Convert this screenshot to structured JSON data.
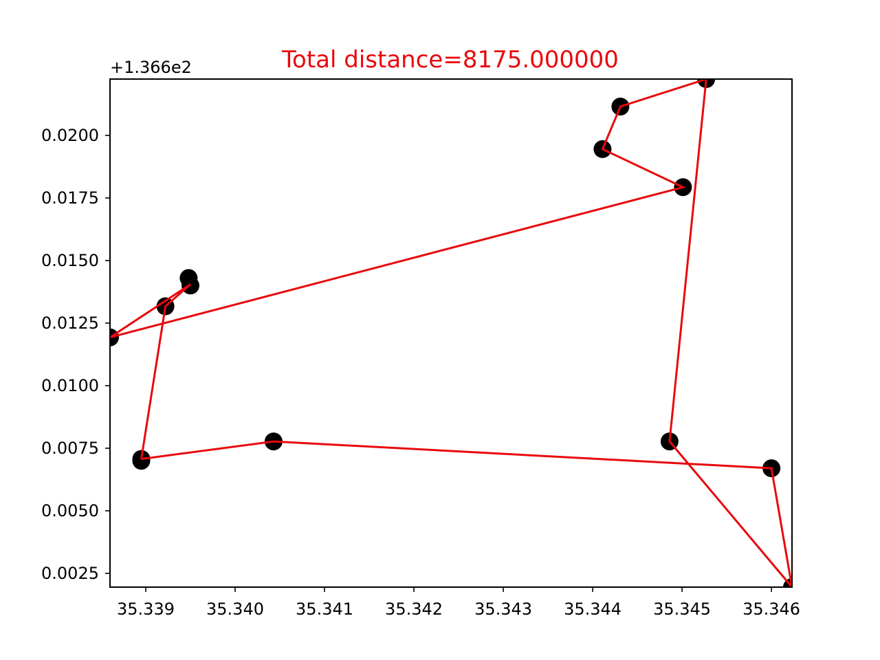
{
  "chart_data": {
    "type": "scatter",
    "title": "Total distance=8175.000000",
    "xlabel": "",
    "ylabel": "",
    "y_offset_label": "+1.366e2",
    "xlim": [
      35.3386,
      35.34623
    ],
    "ylim": [
      0.00195,
      0.02225
    ],
    "x_ticks": [
      35.339,
      35.34,
      35.341,
      35.342,
      35.343,
      35.344,
      35.345,
      35.346
    ],
    "x_tick_labels": [
      "35.339",
      "35.340",
      "35.341",
      "35.342",
      "35.343",
      "35.344",
      "35.345",
      "35.346"
    ],
    "y_ticks": [
      0.0025,
      0.005,
      0.0075,
      0.01,
      0.0125,
      0.015,
      0.0175,
      0.02
    ],
    "y_tick_labels": [
      "0.0025",
      "0.0050",
      "0.0075",
      "0.0100",
      "0.0125",
      "0.0150",
      "0.0175",
      "0.0200"
    ],
    "grid": false,
    "colors": {
      "title": "#e8080c",
      "route": "#e8080c",
      "points": "#000000"
    },
    "series": [
      {
        "values_note": "route order",
        "x": [
          35.33895,
          35.33922,
          35.3395,
          35.3386,
          35.34501,
          35.34411,
          35.34431,
          35.34527,
          35.34486,
          35.34623,
          35.346,
          35.34043,
          35.33895
        ],
        "y": [
          0.00707,
          0.01317,
          0.01405,
          0.01193,
          0.01793,
          0.01945,
          0.02115,
          0.02225,
          0.00777,
          0.00195,
          0.0067,
          0.00777,
          0.00707
        ]
      }
    ],
    "points": {
      "x": [
        35.33895,
        35.33895,
        35.34043,
        35.34486,
        35.346,
        35.34623,
        35.33922,
        35.33948,
        35.3395,
        35.3386,
        35.34501,
        35.34411,
        35.34431,
        35.34527
      ],
      "y": [
        0.007,
        0.00707,
        0.00777,
        0.00777,
        0.0067,
        0.00195,
        0.01317,
        0.0143,
        0.014,
        0.01193,
        0.01793,
        0.01945,
        0.02115,
        0.02225
      ]
    }
  }
}
